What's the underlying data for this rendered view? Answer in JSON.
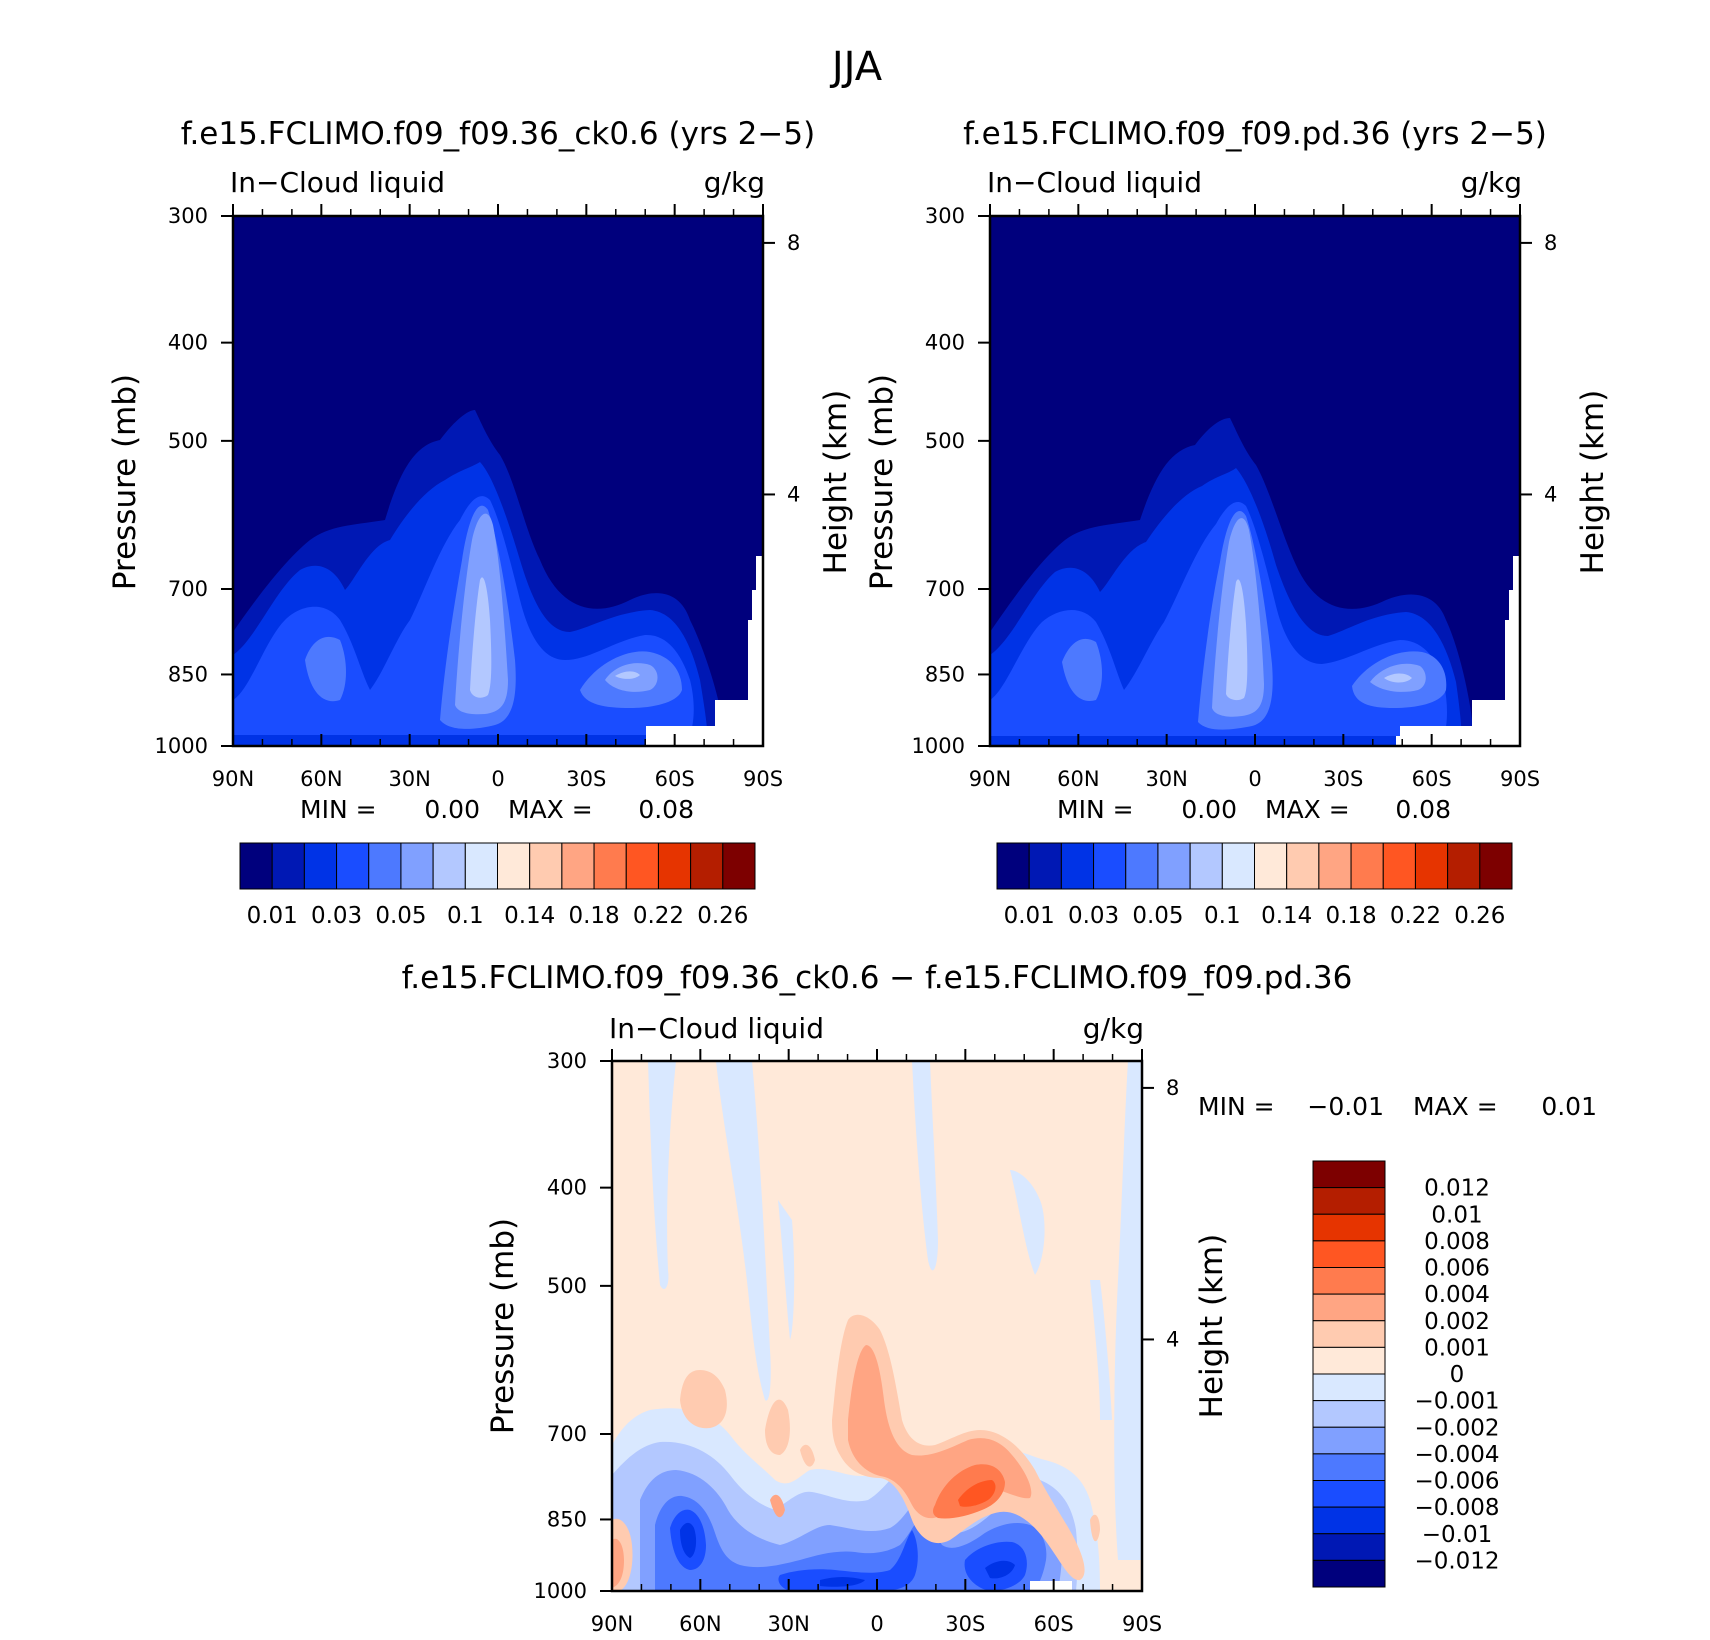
{
  "figure": {
    "title": "JJA"
  },
  "panels": [
    {
      "title": "f.e15.FCLIMO.f09_f09.36_ck0.6 (yrs 2−5)",
      "left_label": "In−Cloud liquid",
      "right_label": "g/kg",
      "ylabel": "Pressure (mb)",
      "y2label": "Height (km)",
      "min_label": "MIN =",
      "min_value": "0.00",
      "max_label": "MAX =",
      "max_value": "0.08"
    },
    {
      "title": "f.e15.FCLIMO.f09_f09.pd.36 (yrs 2−5)",
      "left_label": "In−Cloud liquid",
      "right_label": "g/kg",
      "ylabel": "Pressure (mb)",
      "y2label": "Height (km)",
      "min_label": "MIN =",
      "min_value": "0.00",
      "max_label": "MAX =",
      "max_value": "0.08"
    },
    {
      "title": "f.e15.FCLIMO.f09_f09.36_ck0.6 − f.e15.FCLIMO.f09_f09.pd.36",
      "left_label": "In−Cloud liquid",
      "right_label": "g/kg",
      "ylabel": "Pressure (mb)",
      "y2label": "Height (km)",
      "min_label": "MIN =",
      "min_value": "−0.01",
      "max_label": "MAX =",
      "max_value": "0.01"
    }
  ],
  "chart_data": [
    {
      "type": "heatmap",
      "title": "f.e15.FCLIMO.f09_f09.36_ck0.6 (yrs 2−5)",
      "field": "In−Cloud liquid",
      "units": "g/kg",
      "x_ticks": [
        "90N",
        "60N",
        "30N",
        "0",
        "30S",
        "60S",
        "90S"
      ],
      "x_values": [
        90,
        60,
        30,
        0,
        -30,
        -60,
        -90
      ],
      "y_ticks": [
        300,
        400,
        500,
        700,
        850,
        1000
      ],
      "y_scale": "log-pressure",
      "ylim": [
        1000,
        300
      ],
      "y2_ticks": [
        8,
        4
      ],
      "min": 0.0,
      "max": 0.08,
      "colorbar_labels": [
        "0.01",
        "0.03",
        "0.05",
        "0.1",
        "0.14",
        "0.18",
        "0.22",
        "0.26"
      ],
      "colorbar_colors": [
        "#00007d",
        "#0018b4",
        "#0033e6",
        "#1a4dff",
        "#4d79ff",
        "#80a0ff",
        "#b3c8ff",
        "#d9e8ff",
        "#ffe9d9",
        "#ffcbb0",
        "#ffa583",
        "#ff7b4e",
        "#ff5622",
        "#e63400",
        "#b41e00",
        "#7d0000"
      ]
    },
    {
      "type": "heatmap",
      "title": "f.e15.FCLIMO.f09_f09.pd.36 (yrs 2−5)",
      "field": "In−Cloud liquid",
      "units": "g/kg",
      "x_ticks": [
        "90N",
        "60N",
        "30N",
        "0",
        "30S",
        "60S",
        "90S"
      ],
      "x_values": [
        90,
        60,
        30,
        0,
        -30,
        -60,
        -90
      ],
      "y_ticks": [
        300,
        400,
        500,
        700,
        850,
        1000
      ],
      "y_scale": "log-pressure",
      "ylim": [
        1000,
        300
      ],
      "y2_ticks": [
        8,
        4
      ],
      "min": 0.0,
      "max": 0.08,
      "colorbar_labels": [
        "0.01",
        "0.03",
        "0.05",
        "0.1",
        "0.14",
        "0.18",
        "0.22",
        "0.26"
      ],
      "colorbar_colors": [
        "#00007d",
        "#0018b4",
        "#0033e6",
        "#1a4dff",
        "#4d79ff",
        "#80a0ff",
        "#b3c8ff",
        "#d9e8ff",
        "#ffe9d9",
        "#ffcbb0",
        "#ffa583",
        "#ff7b4e",
        "#ff5622",
        "#e63400",
        "#b41e00",
        "#7d0000"
      ]
    },
    {
      "type": "heatmap",
      "title": "f.e15.FCLIMO.f09_f09.36_ck0.6 − f.e15.FCLIMO.f09_f09.pd.36",
      "field": "In−Cloud liquid",
      "units": "g/kg",
      "x_ticks": [
        "90N",
        "60N",
        "30N",
        "0",
        "30S",
        "60S",
        "90S"
      ],
      "x_values": [
        90,
        60,
        30,
        0,
        -30,
        -60,
        -90
      ],
      "y_ticks": [
        300,
        400,
        500,
        700,
        850,
        1000
      ],
      "y_scale": "log-pressure",
      "ylim": [
        1000,
        300
      ],
      "y2_ticks": [
        8,
        4
      ],
      "min": -0.01,
      "max": 0.01,
      "colorbar_labels": [
        "0.012",
        "0.01",
        "0.008",
        "0.006",
        "0.004",
        "0.002",
        "0.001",
        "0",
        "−0.001",
        "−0.002",
        "−0.004",
        "−0.006",
        "−0.008",
        "−0.01",
        "−0.012"
      ],
      "colorbar_colors": [
        "#7d0000",
        "#b41e00",
        "#e63400",
        "#ff5622",
        "#ff7b4e",
        "#ffa583",
        "#ffcbb0",
        "#ffe9d9",
        "#d9e8ff",
        "#b3c8ff",
        "#80a0ff",
        "#4d79ff",
        "#1a4dff",
        "#0033e6",
        "#0018b4",
        "#00007d"
      ]
    }
  ]
}
